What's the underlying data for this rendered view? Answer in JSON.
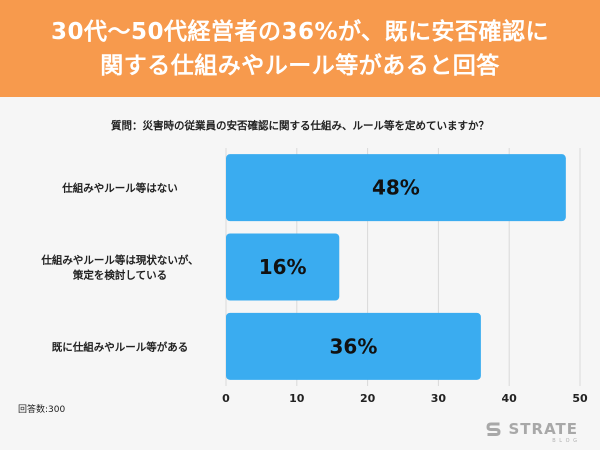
{
  "banner": {
    "line1": "30代〜50代経営者の36%が、既に安否確認に",
    "line2": "関する仕組みやルール等があると回答"
  },
  "question": "質問：災害時の従業員の安否確認に関する仕組み、ルール等を定めていますか？",
  "footnote": "回答数:300",
  "brand": {
    "name": "STRATE",
    "sub": "B L O G",
    "icon": "strate-s-logo-icon"
  },
  "colors": {
    "banner": "#f79a4d",
    "bar": "#3aacf0",
    "grid": "#d9d9d9"
  },
  "chart_data": {
    "type": "bar",
    "orientation": "horizontal",
    "categories": [
      [
        "仕組みやルール等はない"
      ],
      [
        "仕組みやルール等は現状ないが、",
        "策定を検討している"
      ],
      [
        "既に仕組みやルール等がある"
      ]
    ],
    "values": [
      48,
      16,
      36
    ],
    "value_labels": [
      "48%",
      "16%",
      "36%"
    ],
    "xlim": [
      0,
      50
    ],
    "xticks": [
      0,
      10,
      20,
      30,
      40,
      50
    ],
    "grid": true
  }
}
